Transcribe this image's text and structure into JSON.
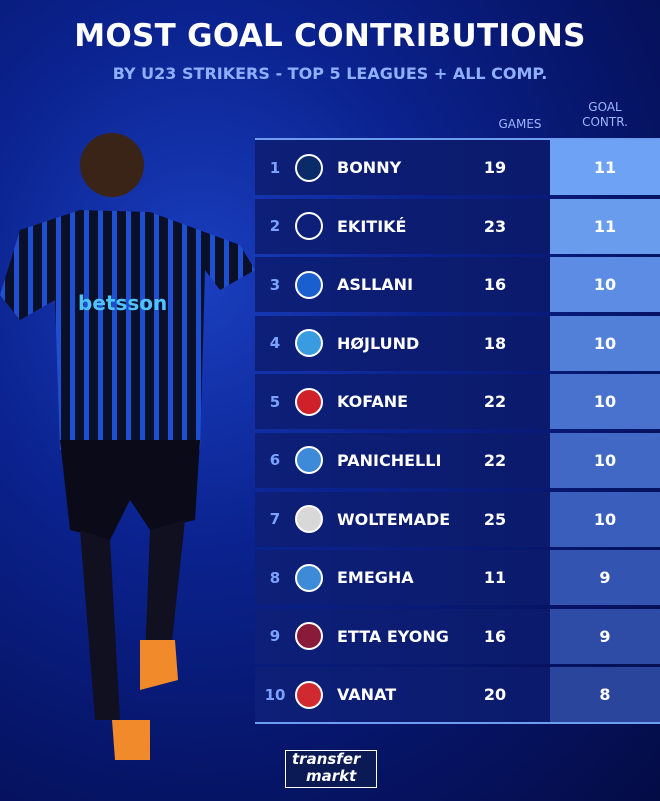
{
  "title": "MOST GOAL CONTRIBUTIONS",
  "subtitle": "BY U23 STRIKERS - TOP 5 LEAGUES + ALL COMP.",
  "columns": {
    "games": "GAMES",
    "goal_line1": "GOAL",
    "goal_line2": "CONTR."
  },
  "rows": [
    {
      "rank": "1",
      "club": "Inter",
      "name": "BONNY",
      "games": "19",
      "goal": "11",
      "crest_color": "#0a2a6a",
      "shade": "#6ea2f4"
    },
    {
      "rank": "2",
      "club": "Liverpool",
      "name": "EKITIKÉ",
      "games": "23",
      "goal": "11",
      "crest_color": "#0d1f78",
      "shade": "#6a9cee"
    },
    {
      "rank": "3",
      "club": "Hoffenheim",
      "name": "ASLLANI",
      "games": "16",
      "goal": "10",
      "crest_color": "#1a5fd0",
      "shade": "#5c8ce4"
    },
    {
      "rank": "4",
      "club": "Napoli",
      "name": "HØJLUND",
      "games": "18",
      "goal": "10",
      "crest_color": "#3a9ce0",
      "shade": "#527fd8"
    },
    {
      "rank": "5",
      "club": "Leverkusen",
      "name": "KOFANE",
      "games": "22",
      "goal": "10",
      "crest_color": "#d0202a",
      "shade": "#4872ce"
    },
    {
      "rank": "6",
      "club": "Strasbourg",
      "name": "PANICHELLI",
      "games": "22",
      "goal": "10",
      "crest_color": "#3c8ad8",
      "shade": "#4068c4"
    },
    {
      "rank": "7",
      "club": "Newcastle / Stuttgart",
      "name": "WOLTEMADE",
      "games": "25",
      "goal": "10",
      "crest_color": "#d8d8d8",
      "shade": "#3a5ebc"
    },
    {
      "rank": "8",
      "club": "Strasbourg",
      "name": "EMEGHA",
      "games": "11",
      "goal": "9",
      "crest_color": "#3c8ad8",
      "shade": "#3354b0"
    },
    {
      "rank": "9",
      "club": "Levante",
      "name": "ETTA EYONG",
      "games": "16",
      "goal": "9",
      "crest_color": "#8a1a3a",
      "shade": "#2e4ca6"
    },
    {
      "rank": "10",
      "club": "Girona",
      "name": "VANAT",
      "games": "20",
      "goal": "8",
      "crest_color": "#d02a30",
      "shade": "#2a459c"
    }
  ],
  "logo": {
    "line1": "transfer",
    "line2": "markt"
  }
}
